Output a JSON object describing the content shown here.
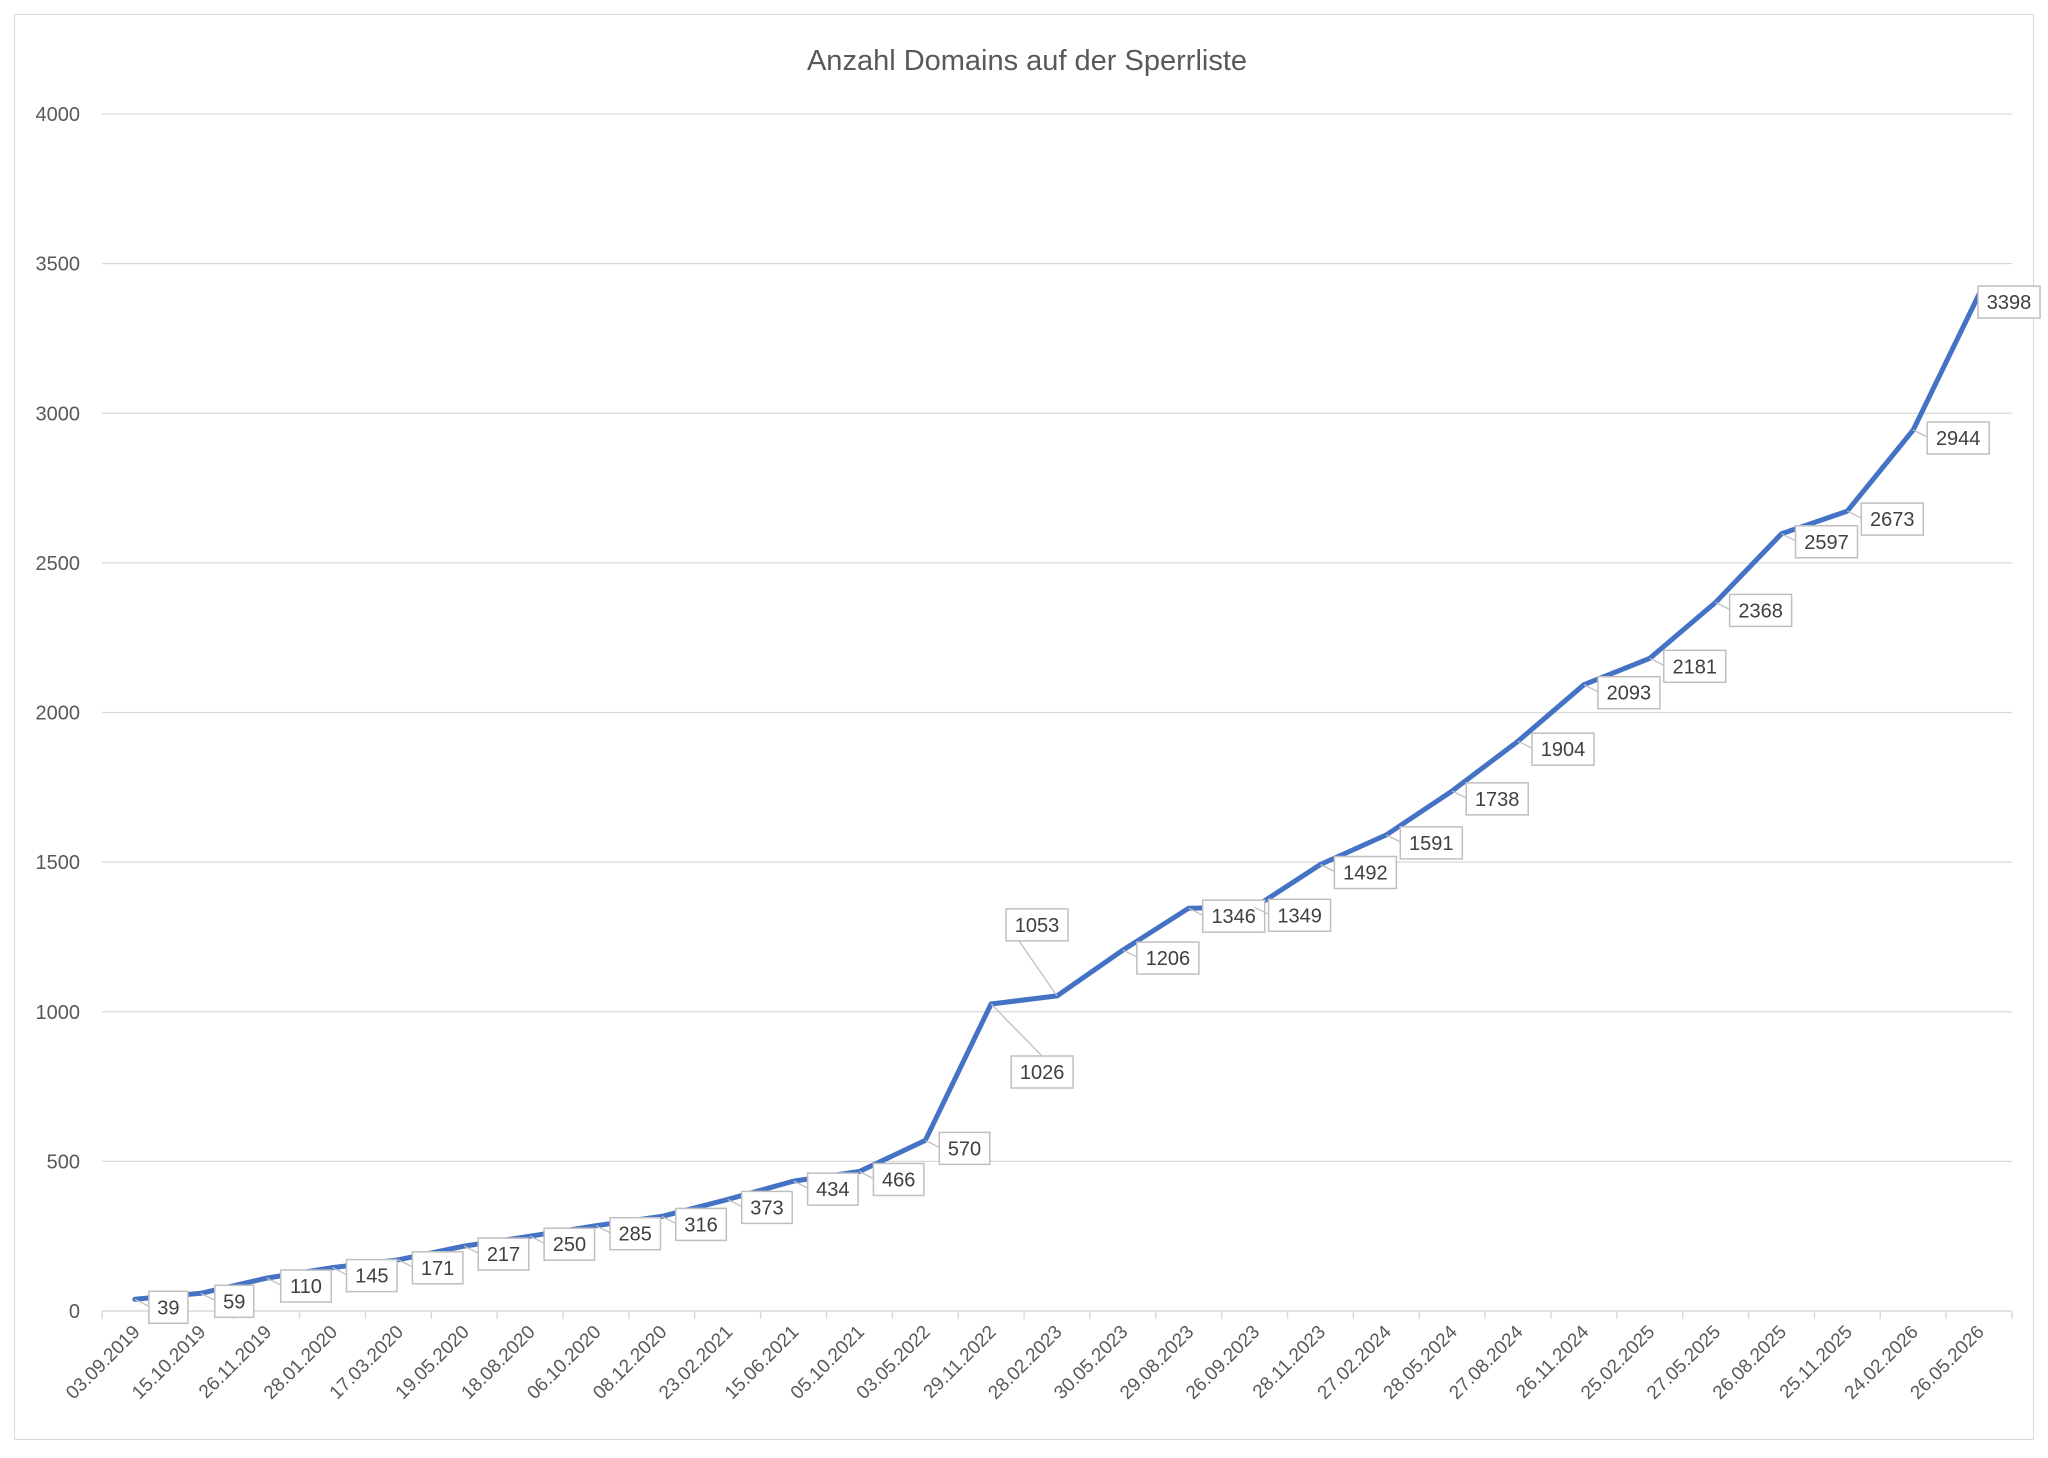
{
  "chart_data": {
    "type": "line",
    "title": "Anzahl Domains auf der Sperrliste",
    "xlabel": "",
    "ylabel": "",
    "ylim": [
      0,
      4000
    ],
    "yticks": [
      "0",
      "500",
      "1000",
      "1500",
      "2000",
      "2500",
      "3000",
      "3500",
      "4000"
    ],
    "grid": true,
    "legend": "none",
    "line_color": "#4472c4",
    "categories": [
      "03.09.2019",
      "15.10.2019",
      "26.11.2019",
      "28.01.2020",
      "17.03.2020",
      "19.05.2020",
      "18.08.2020",
      "06.10.2020",
      "08.12.2020",
      "23.02.2021",
      "15.06.2021",
      "05.10.2021",
      "03.05.2022",
      "29.11.2022",
      "28.02.2023",
      "30.05.2023",
      "29.08.2023",
      "26.09.2023",
      "28.11.2023",
      "27.02.2024",
      "28.05.2024",
      "27.08.2024",
      "26.11.2024",
      "25.02.2025",
      "27.05.2025",
      "26.08.2025",
      "25.11.2025",
      "24.02.2026",
      "26.05.2026"
    ],
    "values": [
      39,
      59,
      110,
      145,
      171,
      217,
      250,
      285,
      316,
      373,
      434,
      466,
      570,
      1026,
      1053,
      1206,
      1346,
      1349,
      1492,
      1591,
      1738,
      1904,
      2093,
      2181,
      2368,
      2597,
      2673,
      2944,
      3398
    ]
  }
}
